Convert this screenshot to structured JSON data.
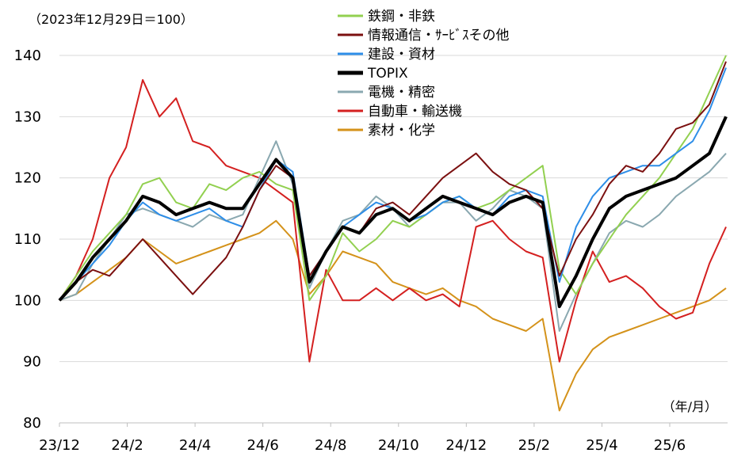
{
  "chart_data": {
    "type": "line",
    "base_note": "（2023年12月29日＝100）",
    "unit_note": "（年/月）",
    "x_ticks": [
      "23/12",
      "24/2",
      "24/4",
      "24/6",
      "24/8",
      "24/10",
      "24/12",
      "25/2",
      "25/4",
      "25/6"
    ],
    "y_ticks": [
      80,
      90,
      100,
      110,
      120,
      130,
      140
    ],
    "ylim": [
      80,
      140
    ],
    "grid": "horizontal",
    "legend_position": "top-center",
    "x": [
      "2023-12",
      "2024-01",
      "2024-01",
      "2024-02",
      "2024-02",
      "2024-03",
      "2024-03",
      "2024-04",
      "2024-04",
      "2024-05",
      "2024-05",
      "2024-06",
      "2024-06",
      "2024-07",
      "2024-07",
      "2024-08",
      "2024-08",
      "2024-08",
      "2024-09",
      "2024-09",
      "2024-10",
      "2024-10",
      "2024-11",
      "2024-11",
      "2024-12",
      "2024-12",
      "2025-01",
      "2025-01",
      "2025-02",
      "2025-02",
      "2025-03",
      "2025-03",
      "2025-04",
      "2025-04",
      "2025-04",
      "2025-05",
      "2025-05",
      "2025-06",
      "2025-06",
      "2025-07",
      "2025-07"
    ],
    "series": [
      {
        "name": "鉄鋼・非鉄",
        "color": "#92d050",
        "width": 2,
        "values": [
          100,
          104,
          108,
          111,
          114,
          119,
          120,
          116,
          115,
          119,
          118,
          120,
          121,
          119,
          118,
          100,
          104,
          111,
          108,
          110,
          113,
          112,
          114,
          116,
          117,
          115,
          116,
          118,
          120,
          122,
          105,
          101,
          106,
          110,
          114,
          117,
          120,
          124,
          128,
          134,
          140
        ]
      },
      {
        "name": "情報通信・ｻｰﾋﾞｽその他",
        "color": "#7b1010",
        "width": 2,
        "values": [
          100,
          103,
          105,
          104,
          107,
          110,
          107,
          104,
          101,
          104,
          107,
          112,
          118,
          122,
          120,
          104,
          108,
          112,
          111,
          115,
          116,
          114,
          117,
          120,
          122,
          124,
          121,
          119,
          118,
          115,
          104,
          110,
          114,
          119,
          122,
          121,
          124,
          128,
          129,
          132,
          139
        ]
      },
      {
        "name": "建設・資材",
        "color": "#2e8ee8",
        "width": 2,
        "values": [
          100,
          103,
          106,
          109,
          113,
          116,
          114,
          113,
          114,
          115,
          113,
          112,
          118,
          123,
          121,
          104,
          108,
          112,
          114,
          116,
          115,
          113,
          114,
          116,
          117,
          115,
          114,
          117,
          118,
          117,
          103,
          112,
          117,
          120,
          121,
          122,
          122,
          124,
          126,
          131,
          138
        ]
      },
      {
        "name": "TOPIX",
        "color": "#000000",
        "width": 4,
        "values": [
          100,
          103,
          107,
          110,
          113,
          117,
          116,
          114,
          115,
          116,
          115,
          115,
          119,
          123,
          120,
          103,
          108,
          112,
          111,
          114,
          115,
          113,
          115,
          117,
          116,
          115,
          114,
          116,
          117,
          116,
          99,
          104,
          110,
          115,
          117,
          118,
          119,
          120,
          122,
          124,
          130
        ]
      },
      {
        "name": "電機・精密",
        "color": "#8aa8b0",
        "width": 2,
        "values": [
          100,
          101,
          106,
          110,
          114,
          115,
          114,
          113,
          112,
          114,
          113,
          114,
          120,
          126,
          119,
          102,
          108,
          113,
          114,
          117,
          115,
          112,
          114,
          116,
          116,
          113,
          115,
          118,
          117,
          115,
          95,
          101,
          106,
          111,
          113,
          112,
          114,
          117,
          119,
          121,
          124
        ]
      },
      {
        "name": "自動車・輸送機",
        "color": "#d42020",
        "width": 2,
        "values": [
          100,
          104,
          110,
          120,
          125,
          136,
          130,
          133,
          126,
          125,
          122,
          121,
          120,
          118,
          116,
          90,
          105,
          100,
          100,
          102,
          100,
          102,
          100,
          101,
          99,
          112,
          113,
          110,
          108,
          107,
          90,
          100,
          108,
          103,
          104,
          102,
          99,
          97,
          98,
          106,
          112
        ]
      },
      {
        "name": "素材・化学",
        "color": "#d4921a",
        "width": 2,
        "values": [
          100,
          101,
          103,
          105,
          107,
          110,
          108,
          106,
          107,
          108,
          109,
          110,
          111,
          113,
          110,
          101,
          104,
          108,
          107,
          106,
          103,
          102,
          101,
          102,
          100,
          99,
          97,
          96,
          95,
          97,
          82,
          88,
          92,
          94,
          95,
          96,
          97,
          98,
          99,
          100,
          102
        ]
      }
    ]
  }
}
